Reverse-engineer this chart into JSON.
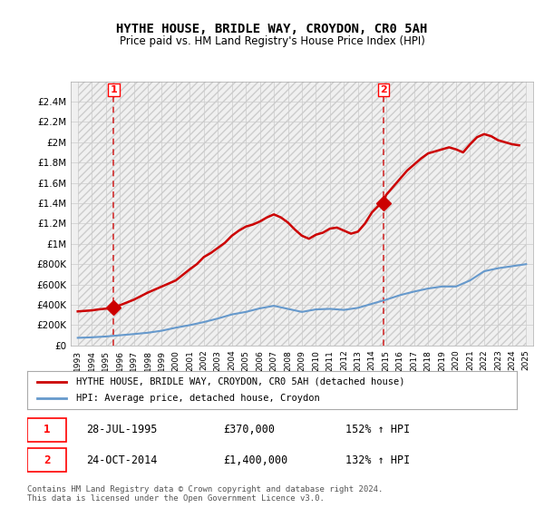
{
  "title": "HYTHE HOUSE, BRIDLE WAY, CROYDON, CR0 5AH",
  "subtitle": "Price paid vs. HM Land Registry's House Price Index (HPI)",
  "sale1_date": 1995.57,
  "sale1_price": 370000,
  "sale1_label": "1",
  "sale1_hpi_pct": "152% ↑ HPI",
  "sale1_date_str": "28-JUL-1995",
  "sale2_date": 2014.81,
  "sale2_price": 1400000,
  "sale2_label": "2",
  "sale2_hpi_pct": "132% ↑ HPI",
  "sale2_date_str": "24-OCT-2014",
  "legend_red": "HYTHE HOUSE, BRIDLE WAY, CROYDON, CR0 5AH (detached house)",
  "legend_blue": "HPI: Average price, detached house, Croydon",
  "footnote": "Contains HM Land Registry data © Crown copyright and database right 2024.\nThis data is licensed under the Open Government Licence v3.0.",
  "ylim": [
    0,
    2600000
  ],
  "yticks": [
    0,
    200000,
    400000,
    600000,
    800000,
    1000000,
    1200000,
    1400000,
    1600000,
    1800000,
    2000000,
    2200000,
    2400000
  ],
  "ytick_labels": [
    "£0",
    "£200K",
    "£400K",
    "£600K",
    "£800K",
    "£1M",
    "£1.2M",
    "£1.4M",
    "£1.6M",
    "£1.8M",
    "£2M",
    "£2.2M",
    "£2.4M"
  ],
  "xlim": [
    1992.5,
    2025.5
  ],
  "xticks": [
    1993,
    1994,
    1995,
    1996,
    1997,
    1998,
    1999,
    2000,
    2001,
    2002,
    2003,
    2004,
    2005,
    2006,
    2007,
    2008,
    2009,
    2010,
    2011,
    2012,
    2013,
    2014,
    2015,
    2016,
    2017,
    2018,
    2019,
    2020,
    2021,
    2022,
    2023,
    2024,
    2025
  ],
  "red_color": "#cc0000",
  "blue_color": "#6699cc",
  "marker_color": "#cc0000",
  "dashed_color": "#cc0000",
  "grid_color": "#cccccc",
  "bg_color": "#ffffff",
  "plot_bg_color": "#f0f0f0",
  "hatch_color": "#dddddd",
  "red_x": [
    1993.0,
    1993.5,
    1994.0,
    1994.5,
    1995.0,
    1995.57,
    1996.0,
    1997.0,
    1998.0,
    1999.0,
    2000.0,
    2001.0,
    2001.5,
    2002.0,
    2002.5,
    2003.0,
    2003.5,
    2004.0,
    2004.5,
    2005.0,
    2005.5,
    2006.0,
    2006.5,
    2007.0,
    2007.5,
    2008.0,
    2008.5,
    2009.0,
    2009.5,
    2010.0,
    2010.5,
    2011.0,
    2011.5,
    2012.0,
    2012.5,
    2013.0,
    2013.5,
    2014.0,
    2014.5,
    2014.81,
    2015.0,
    2015.5,
    2016.0,
    2016.5,
    2017.0,
    2017.5,
    2018.0,
    2018.5,
    2019.0,
    2019.5,
    2020.0,
    2020.5,
    2021.0,
    2021.5,
    2022.0,
    2022.5,
    2023.0,
    2023.5,
    2024.0,
    2024.5
  ],
  "red_y": [
    335000,
    340000,
    345000,
    355000,
    362000,
    370000,
    395000,
    450000,
    520000,
    580000,
    640000,
    750000,
    800000,
    870000,
    910000,
    960000,
    1010000,
    1080000,
    1130000,
    1170000,
    1190000,
    1220000,
    1260000,
    1290000,
    1260000,
    1210000,
    1140000,
    1080000,
    1050000,
    1090000,
    1110000,
    1150000,
    1160000,
    1130000,
    1100000,
    1120000,
    1200000,
    1310000,
    1380000,
    1400000,
    1480000,
    1560000,
    1640000,
    1720000,
    1780000,
    1840000,
    1890000,
    1910000,
    1930000,
    1950000,
    1930000,
    1900000,
    1980000,
    2050000,
    2080000,
    2060000,
    2020000,
    2000000,
    1980000,
    1970000
  ],
  "blue_x": [
    1993.0,
    1994.0,
    1995.0,
    1996.0,
    1997.0,
    1998.0,
    1999.0,
    2000.0,
    2001.0,
    2002.0,
    2003.0,
    2004.0,
    2005.0,
    2006.0,
    2007.0,
    2008.0,
    2009.0,
    2010.0,
    2011.0,
    2012.0,
    2013.0,
    2014.0,
    2015.0,
    2016.0,
    2017.0,
    2018.0,
    2019.0,
    2020.0,
    2021.0,
    2022.0,
    2023.0,
    2024.0,
    2025.0
  ],
  "blue_y": [
    75000,
    80000,
    88000,
    100000,
    112000,
    125000,
    145000,
    175000,
    200000,
    230000,
    265000,
    305000,
    330000,
    365000,
    390000,
    360000,
    330000,
    355000,
    360000,
    350000,
    370000,
    410000,
    450000,
    495000,
    530000,
    560000,
    580000,
    580000,
    640000,
    730000,
    760000,
    780000,
    800000
  ]
}
